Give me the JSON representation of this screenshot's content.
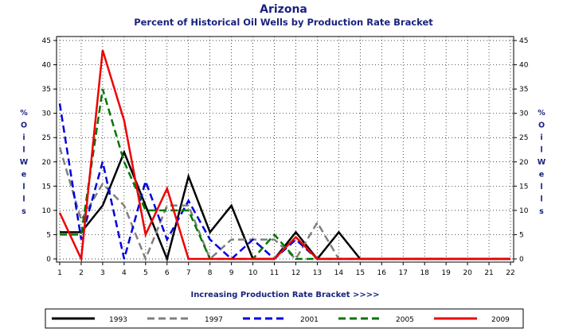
{
  "chart_data": {
    "type": "line",
    "title": "Arizona",
    "subtitle": "Percent of Historical Oil Wells by Production Rate Bracket",
    "xlabel": "Increasing Production Rate Bracket >>>>",
    "ylabel": "% Oil Wells",
    "x": [
      1,
      2,
      3,
      4,
      5,
      6,
      7,
      8,
      9,
      10,
      11,
      12,
      13,
      14,
      15,
      16,
      17,
      18,
      19,
      20,
      21,
      22
    ],
    "ylim": [
      0,
      45
    ],
    "yticks": [
      0,
      5,
      10,
      15,
      20,
      25,
      30,
      35,
      40,
      45
    ],
    "grid": true,
    "legend_position": "bottom",
    "series": [
      {
        "name": "1993",
        "color": "#000000",
        "dash": "solid",
        "values": [
          5.5,
          5.5,
          11,
          22,
          11,
          0,
          17,
          5.5,
          11,
          0,
          0,
          5.5,
          0,
          5.5,
          0,
          0,
          0,
          0,
          0,
          0,
          0,
          0
        ]
      },
      {
        "name": "1997",
        "color": "#808080",
        "dash": "dashed",
        "values": [
          23,
          8,
          15.5,
          11,
          0,
          11,
          11,
          0,
          4,
          4,
          4,
          0,
          7.5,
          0,
          0,
          0,
          0,
          0,
          0,
          0,
          0,
          0
        ]
      },
      {
        "name": "2001",
        "color": "#0000dd",
        "dash": "dashed",
        "values": [
          32,
          4,
          20,
          0,
          16,
          4,
          12,
          4,
          0,
          4,
          0,
          4,
          0,
          0,
          0,
          0,
          0,
          0,
          0,
          0,
          0,
          0
        ]
      },
      {
        "name": "2005",
        "color": "#007700",
        "dash": "dashed",
        "values": [
          5,
          5,
          35,
          20,
          10,
          10,
          10,
          0,
          0,
          0,
          5,
          0,
          0,
          0,
          0,
          0,
          0,
          0,
          0,
          0,
          0,
          0
        ]
      },
      {
        "name": "2009",
        "color": "#ee0000",
        "dash": "solid",
        "values": [
          9.5,
          0,
          43,
          28.5,
          5,
          14.5,
          0,
          0,
          0,
          0,
          0,
          4.5,
          0,
          0,
          0,
          0,
          0,
          0,
          0,
          0,
          0,
          0
        ]
      }
    ]
  }
}
